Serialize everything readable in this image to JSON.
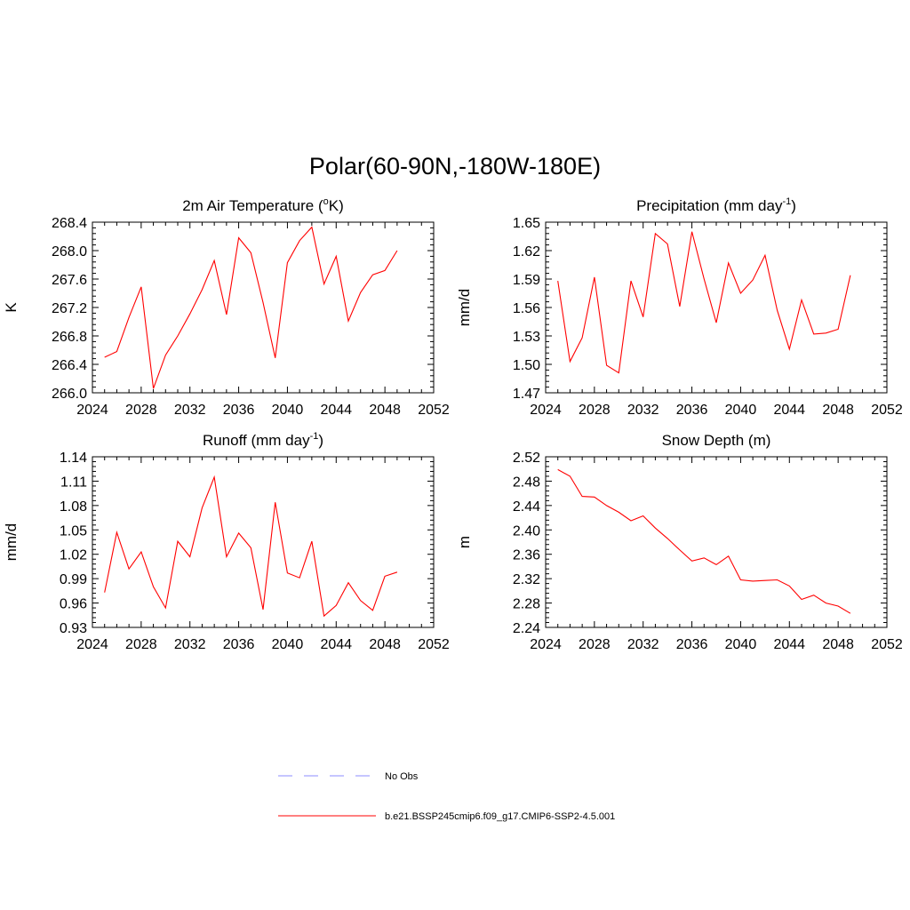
{
  "figure": {
    "title": "Polar(60-90N,-180W-180E)"
  },
  "legend": {
    "items": [
      {
        "label": "No Obs",
        "color": "#8c8cff",
        "style": "dashed"
      },
      {
        "label": "b.e21.BSSP245cmip6.f09_g17.CMIP6-SSP2-4.5.001",
        "color": "#ff0000",
        "style": "solid"
      }
    ]
  },
  "chart_data": [
    {
      "id": "temp",
      "type": "line",
      "title": "2m Air Temperature (",
      "title_sup": "o",
      "title_post": "K)",
      "ylabel": "K",
      "xlabel": "",
      "xlim": [
        2024,
        2052
      ],
      "ylim": [
        266.0,
        268.4
      ],
      "xticks": [
        2024,
        2028,
        2032,
        2036,
        2040,
        2044,
        2048,
        2052
      ],
      "yticks": [
        "266.0",
        "266.4",
        "266.8",
        "267.2",
        "267.6",
        "268.0",
        "268.4"
      ],
      "series": [
        {
          "color": "#ff0000",
          "x": [
            2025,
            2026,
            2027,
            2028,
            2029,
            2030,
            2031,
            2032,
            2033,
            2034,
            2035,
            2036,
            2037,
            2038,
            2039,
            2040,
            2041,
            2042,
            2043,
            2044,
            2045,
            2046,
            2047,
            2048,
            2049
          ],
          "y": [
            266.5,
            266.58,
            267.06,
            267.49,
            266.06,
            266.53,
            266.8,
            267.11,
            267.45,
            267.86,
            267.1,
            268.18,
            267.97,
            267.27,
            266.49,
            267.83,
            268.14,
            268.33,
            267.53,
            267.92,
            267.01,
            267.41,
            267.66,
            267.72,
            268.0
          ]
        }
      ]
    },
    {
      "id": "precip",
      "type": "line",
      "title": "Precipitation (mm day",
      "title_sup": "-1",
      "title_post": ")",
      "ylabel": "mm/d",
      "xlabel": "",
      "xlim": [
        2024,
        2052
      ],
      "ylim": [
        1.47,
        1.65
      ],
      "xticks": [
        2024,
        2028,
        2032,
        2036,
        2040,
        2044,
        2048,
        2052
      ],
      "yticks": [
        "1.47",
        "1.50",
        "1.53",
        "1.56",
        "1.59",
        "1.62",
        "1.65"
      ],
      "series": [
        {
          "color": "#ff0000",
          "x": [
            2025,
            2026,
            2027,
            2028,
            2029,
            2030,
            2031,
            2032,
            2033,
            2034,
            2035,
            2036,
            2037,
            2038,
            2039,
            2040,
            2041,
            2042,
            2043,
            2044,
            2045,
            2046,
            2047,
            2048,
            2049
          ],
          "y": [
            1.588,
            1.503,
            1.528,
            1.592,
            1.499,
            1.491,
            1.588,
            1.55,
            1.638,
            1.627,
            1.561,
            1.64,
            1.59,
            1.544,
            1.607,
            1.575,
            1.589,
            1.615,
            1.557,
            1.516,
            1.568,
            1.532,
            1.533,
            1.537,
            1.594
          ]
        }
      ]
    },
    {
      "id": "runoff",
      "type": "line",
      "title": "Runoff (mm day",
      "title_sup": "-1",
      "title_post": ")",
      "ylabel": "mm/d",
      "xlabel": "",
      "xlim": [
        2024,
        2052
      ],
      "ylim": [
        0.93,
        1.14
      ],
      "xticks": [
        2024,
        2028,
        2032,
        2036,
        2040,
        2044,
        2048,
        2052
      ],
      "yticks": [
        "0.93",
        "0.96",
        "0.99",
        "1.02",
        "1.05",
        "1.08",
        "1.11",
        "1.14"
      ],
      "series": [
        {
          "color": "#ff0000",
          "x": [
            2025,
            2026,
            2027,
            2028,
            2029,
            2030,
            2031,
            2032,
            2033,
            2034,
            2035,
            2036,
            2037,
            2038,
            2039,
            2040,
            2041,
            2042,
            2043,
            2044,
            2045,
            2046,
            2047,
            2048,
            2049
          ],
          "y": [
            0.973,
            1.047,
            1.002,
            1.023,
            0.98,
            0.954,
            1.036,
            1.017,
            1.077,
            1.115,
            1.017,
            1.046,
            1.028,
            0.952,
            1.084,
            0.997,
            0.991,
            1.036,
            0.944,
            0.957,
            0.985,
            0.963,
            0.951,
            0.993,
            0.998
          ]
        }
      ]
    },
    {
      "id": "snow",
      "type": "line",
      "title": "Snow Depth (m)",
      "title_sup": "",
      "title_post": "",
      "ylabel": "m",
      "xlabel": "",
      "xlim": [
        2024,
        2052
      ],
      "ylim": [
        2.24,
        2.52
      ],
      "xticks": [
        2024,
        2028,
        2032,
        2036,
        2040,
        2044,
        2048,
        2052
      ],
      "yticks": [
        "2.24",
        "2.28",
        "2.32",
        "2.36",
        "2.40",
        "2.44",
        "2.48",
        "2.52"
      ],
      "series": [
        {
          "color": "#ff0000",
          "x": [
            2025,
            2026,
            2027,
            2028,
            2029,
            2030,
            2031,
            2032,
            2033,
            2034,
            2035,
            2036,
            2037,
            2038,
            2039,
            2040,
            2041,
            2042,
            2043,
            2044,
            2045,
            2046,
            2047,
            2048,
            2049
          ],
          "y": [
            2.499,
            2.488,
            2.455,
            2.454,
            2.44,
            2.429,
            2.415,
            2.423,
            2.403,
            2.386,
            2.367,
            2.349,
            2.354,
            2.343,
            2.357,
            2.318,
            2.316,
            2.317,
            2.318,
            2.308,
            2.286,
            2.293,
            2.28,
            2.275,
            2.263
          ]
        }
      ]
    }
  ]
}
